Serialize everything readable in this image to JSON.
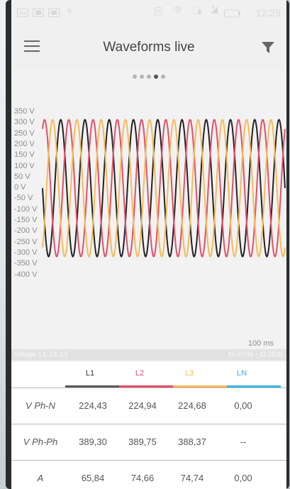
{
  "status_bar": {
    "time": "12:29",
    "icons": [
      "image-icon",
      "gallery-icon",
      "gallery-icon-2",
      "usb-icon",
      "nfc-icon",
      "wifi-icon",
      "sim-icon",
      "signal-icon",
      "battery-icon"
    ]
  },
  "app_bar": {
    "title": "Waveforms live",
    "menu_icon": "hamburger-menu-icon",
    "filter_icon": "filter-icon"
  },
  "page_indicator": {
    "count": 5,
    "active_index": 3
  },
  "chart": {
    "y_tick_labels": [
      "350 V",
      "300 V",
      "250 V",
      "200 V",
      "150 V",
      "100 V",
      "50 V",
      "0 V",
      "-50 V",
      "-100 V",
      "-150 V",
      "-200 V",
      "-250 V",
      "-300 V",
      "-350 V",
      "-400 V"
    ],
    "x_unit_label": "100 ms"
  },
  "chart_data": {
    "type": "line",
    "xlabel": "",
    "ylabel": "",
    "ylim": [
      -400,
      350
    ],
    "xlim": [
      0,
      100
    ],
    "x_unit": "ms",
    "frequency_hz": 100,
    "amplitude_v": 315,
    "series": [
      {
        "name": "L1",
        "color": "#222222",
        "phase_deg": 180
      },
      {
        "name": "L2",
        "color": "#e0506a",
        "phase_deg": 60
      },
      {
        "name": "L3",
        "color": "#f6bb58",
        "phase_deg": 300
      }
    ]
  },
  "info_bar": {
    "left": "Voltage: L1, L2, L3",
    "right": "15-07-16 - 12:29:11"
  },
  "table": {
    "headers": [
      {
        "label": "L1",
        "color": "#333333",
        "bar": "#5a5a5a"
      },
      {
        "label": "L2",
        "color": "#e0506a",
        "bar": "#e0506a"
      },
      {
        "label": "L3",
        "color": "#f6bb58",
        "bar": "#f6bb58"
      },
      {
        "label": "LN",
        "color": "#3db7e4",
        "bar": "#3db7e4"
      }
    ],
    "rows": [
      {
        "label": "V Ph-N",
        "values": [
          "224,43",
          "224,94",
          "224,68",
          "0,00"
        ]
      },
      {
        "label": "V Ph-Ph",
        "values": [
          "389,30",
          "389,75",
          "388,37",
          "--"
        ]
      },
      {
        "label": "A",
        "values": [
          "65,84",
          "74,66",
          "74,74",
          "0,00"
        ]
      }
    ]
  }
}
